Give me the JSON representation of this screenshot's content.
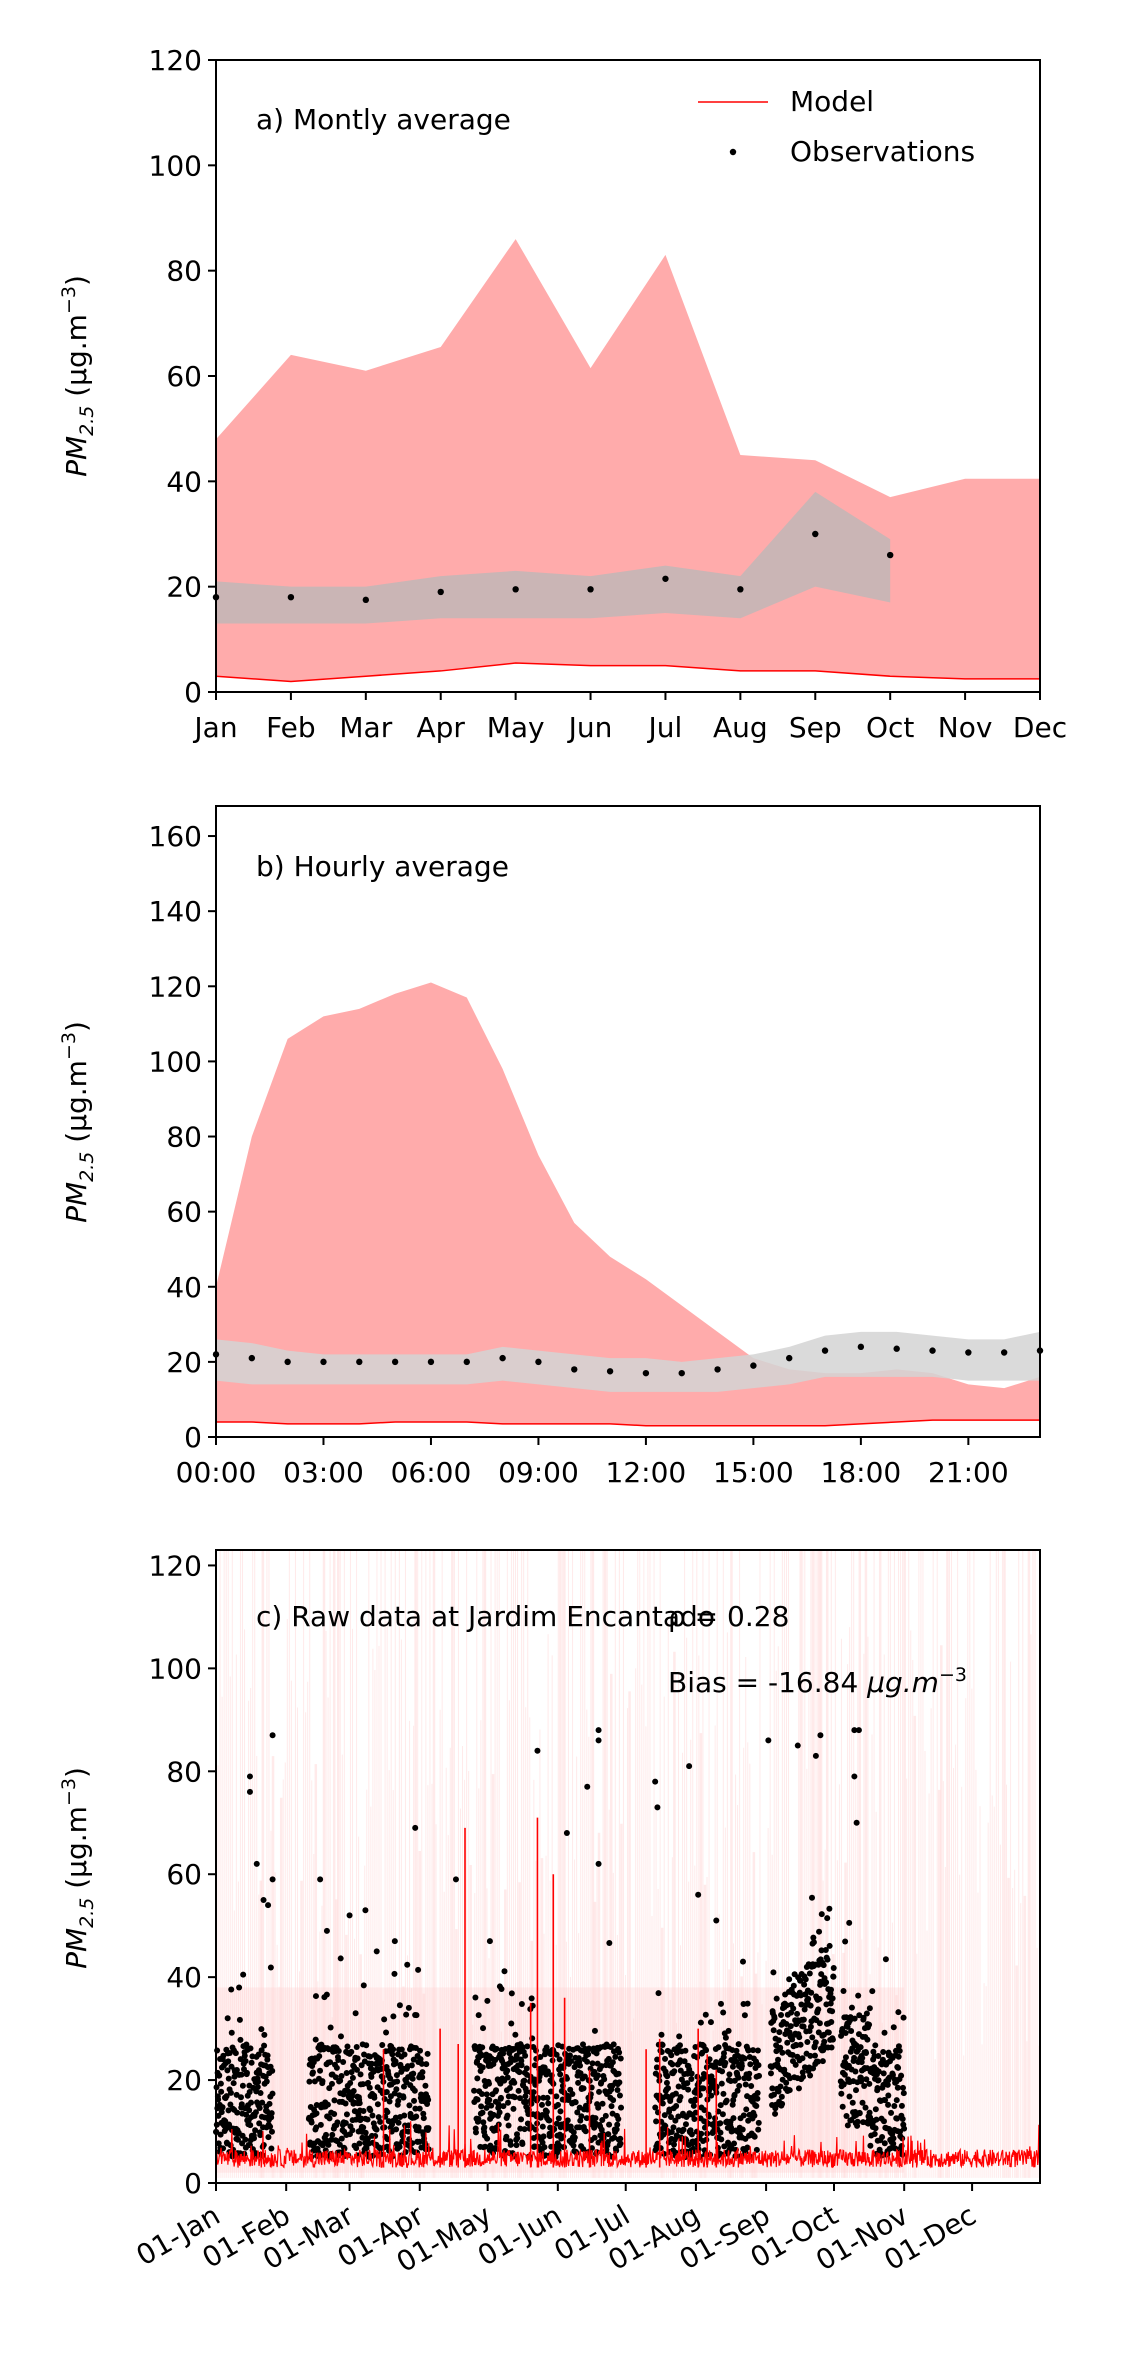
{
  "chart_data": [
    {
      "type": "area",
      "panel_label": "a) Montly average",
      "ylabel_main": "PM",
      "ylabel_sub": "2.5",
      "ylabel_unit_prefix": " (μg.m",
      "ylabel_unit_exp": "−3",
      "ylabel_unit_suffix": ")",
      "ylim": [
        0,
        120
      ],
      "yticks": [
        0,
        20,
        40,
        60,
        80,
        100,
        120
      ],
      "categories": [
        "Jan",
        "Feb",
        "Mar",
        "Apr",
        "May",
        "Jun",
        "Jul",
        "Aug",
        "Sep",
        "Oct",
        "Nov",
        "Dec"
      ],
      "legend": {
        "position": "top-right",
        "model_label": "Model",
        "obs_label": "Observations"
      },
      "series": [
        {
          "name": "Model",
          "color": "#ff0000",
          "band_color": "#ffabab",
          "lower": [
            3,
            2,
            3,
            4,
            5.5,
            5,
            5,
            4,
            4,
            3,
            2.5,
            2.5
          ],
          "upper": [
            48,
            64,
            61,
            65.5,
            86,
            61.5,
            83,
            45,
            44,
            37,
            40.5,
            40.5
          ]
        },
        {
          "name": "Observations",
          "color": "#000000",
          "band_color": "#b8b8b8",
          "values": [
            18,
            18,
            17.5,
            19,
            19.5,
            19.5,
            21.5,
            19.5,
            30,
            26,
            null,
            null
          ],
          "lower": [
            13,
            13,
            13,
            14,
            14,
            14,
            15,
            14,
            20,
            17,
            null,
            null
          ],
          "upper": [
            21,
            20,
            20,
            22,
            23,
            22,
            24,
            22,
            38,
            29,
            null,
            null
          ]
        }
      ]
    },
    {
      "type": "area",
      "panel_label": "b) Hourly average",
      "ylabel_main": "PM",
      "ylabel_sub": "2.5",
      "ylabel_unit_prefix": " (μg.m",
      "ylabel_unit_exp": "−3",
      "ylabel_unit_suffix": ")",
      "ylim": [
        0,
        168
      ],
      "yticks": [
        0,
        20,
        40,
        60,
        80,
        100,
        120,
        140,
        160
      ],
      "x_hours": [
        0,
        1,
        2,
        3,
        4,
        5,
        6,
        7,
        8,
        9,
        10,
        11,
        12,
        13,
        14,
        15,
        16,
        17,
        18,
        19,
        20,
        21,
        22,
        23
      ],
      "xlim": [
        0,
        23
      ],
      "xticks": [
        0,
        3,
        6,
        9,
        12,
        15,
        18,
        21
      ],
      "xtick_labels": [
        "00:00",
        "03:00",
        "06:00",
        "09:00",
        "12:00",
        "15:00",
        "18:00",
        "21:00"
      ],
      "series": [
        {
          "name": "Model",
          "color": "#ff0000",
          "band_color": "#ffabab",
          "lower": [
            4,
            4,
            3.5,
            3.5,
            3.5,
            4,
            4,
            4,
            3.5,
            3.5,
            3.5,
            3.5,
            3,
            3,
            3,
            3,
            3,
            3,
            3.5,
            4,
            4.5,
            4.5,
            4.5,
            4.5
          ],
          "upper": [
            40,
            80,
            106,
            112,
            114,
            118,
            121,
            117,
            98,
            75,
            57,
            48,
            42,
            35,
            28,
            21,
            18,
            17,
            17,
            18,
            17,
            14,
            13,
            16
          ]
        },
        {
          "name": "Observations",
          "color": "#000000",
          "band_color": "#d3d3d3",
          "values": [
            22,
            21,
            20,
            20,
            20,
            20,
            20,
            20,
            21,
            20,
            18,
            17.5,
            17,
            17,
            18,
            19,
            21,
            23,
            24,
            23.5,
            23,
            22.5,
            22.5,
            23
          ],
          "lower": [
            15,
            14,
            14,
            14,
            14,
            14,
            14,
            14,
            15,
            14,
            13,
            12,
            12,
            12,
            12,
            13,
            14,
            16,
            16,
            16,
            16,
            15,
            15,
            15
          ],
          "upper": [
            26,
            25,
            23,
            22,
            22,
            22,
            22,
            22,
            24,
            23,
            22,
            21,
            21,
            20,
            21,
            22,
            24,
            27,
            28,
            28,
            27,
            26,
            26,
            28
          ]
        }
      ]
    },
    {
      "type": "line",
      "panel_label": "c) Raw data at Jardim Encantado",
      "r_text": "ρ = 0.28",
      "bias_text_prefix": "Bias = -16.84 ",
      "bias_text_unit": "μg.m",
      "bias_text_exp": "−3",
      "ylabel_main": "PM",
      "ylabel_sub": "2.5",
      "ylabel_unit_prefix": " (μg.m",
      "ylabel_unit_exp": "−3",
      "ylabel_unit_suffix": ")",
      "ylim": [
        0,
        123
      ],
      "yticks": [
        0,
        20,
        40,
        60,
        80,
        100,
        120
      ],
      "xlim_day_of_year": [
        1,
        365
      ],
      "xtick_days": [
        1,
        32,
        60,
        91,
        121,
        152,
        182,
        213,
        244,
        274,
        305,
        335
      ],
      "xtick_labels": [
        "01-Jan",
        "01-Feb",
        "01-Mar",
        "01-Apr",
        "01-May",
        "01-Jun",
        "01-Jul",
        "01-Aug",
        "01-Sep",
        "01-Oct",
        "01-Nov",
        "01-Dec"
      ],
      "observation_gaps_day_ranges": [
        [
          26,
          42
        ],
        [
          95,
          115
        ],
        [
          180,
          195
        ],
        [
          241,
          246
        ],
        [
          274,
          277
        ]
      ],
      "observation_period_day_range": [
        1,
        305
      ],
      "model_spikes": [
        {
          "day": 75,
          "value": 26
        },
        {
          "day": 100,
          "value": 30
        },
        {
          "day": 108,
          "value": 27
        },
        {
          "day": 111,
          "value": 69
        },
        {
          "day": 140,
          "value": 35
        },
        {
          "day": 143,
          "value": 71
        },
        {
          "day": 150,
          "value": 60
        },
        {
          "day": 155,
          "value": 36
        },
        {
          "day": 166,
          "value": 22
        },
        {
          "day": 191,
          "value": 26
        },
        {
          "day": 197,
          "value": 28
        },
        {
          "day": 214,
          "value": 30
        },
        {
          "day": 218,
          "value": 25
        },
        {
          "day": 222,
          "value": 22
        }
      ],
      "obs_outliers": [
        {
          "day": 16,
          "value": 79
        },
        {
          "day": 16,
          "value": 76
        },
        {
          "day": 19,
          "value": 62
        },
        {
          "day": 22,
          "value": 55
        },
        {
          "day": 24,
          "value": 54
        },
        {
          "day": 26,
          "value": 87
        },
        {
          "day": 26,
          "value": 59
        },
        {
          "day": 47,
          "value": 59
        },
        {
          "day": 50,
          "value": 49
        },
        {
          "day": 60,
          "value": 52
        },
        {
          "day": 67,
          "value": 53
        },
        {
          "day": 72,
          "value": 45
        },
        {
          "day": 80,
          "value": 47
        },
        {
          "day": 89,
          "value": 69
        },
        {
          "day": 107,
          "value": 59
        },
        {
          "day": 122,
          "value": 47
        },
        {
          "day": 143,
          "value": 84
        },
        {
          "day": 156,
          "value": 68
        },
        {
          "day": 165,
          "value": 77
        },
        {
          "day": 170,
          "value": 88
        },
        {
          "day": 170,
          "value": 86
        },
        {
          "day": 170,
          "value": 62
        },
        {
          "day": 195,
          "value": 78
        },
        {
          "day": 196,
          "value": 73
        },
        {
          "day": 210,
          "value": 81
        },
        {
          "day": 214,
          "value": 56
        },
        {
          "day": 222,
          "value": 51
        },
        {
          "day": 245,
          "value": 86
        },
        {
          "day": 258,
          "value": 85
        },
        {
          "day": 266,
          "value": 83
        },
        {
          "day": 268,
          "value": 87
        },
        {
          "day": 283,
          "value": 88
        },
        {
          "day": 285,
          "value": 88
        },
        {
          "day": 283,
          "value": 79
        },
        {
          "day": 284,
          "value": 70
        },
        {
          "day": 297,
          "value": 23
        },
        {
          "day": 298,
          "value": 20
        },
        {
          "day": 298,
          "value": 17
        }
      ],
      "series": [
        {
          "name": "Model",
          "color": "#ff0000",
          "band_color": "#ffd0d0"
        },
        {
          "name": "Observations",
          "color": "#000000"
        }
      ]
    }
  ]
}
